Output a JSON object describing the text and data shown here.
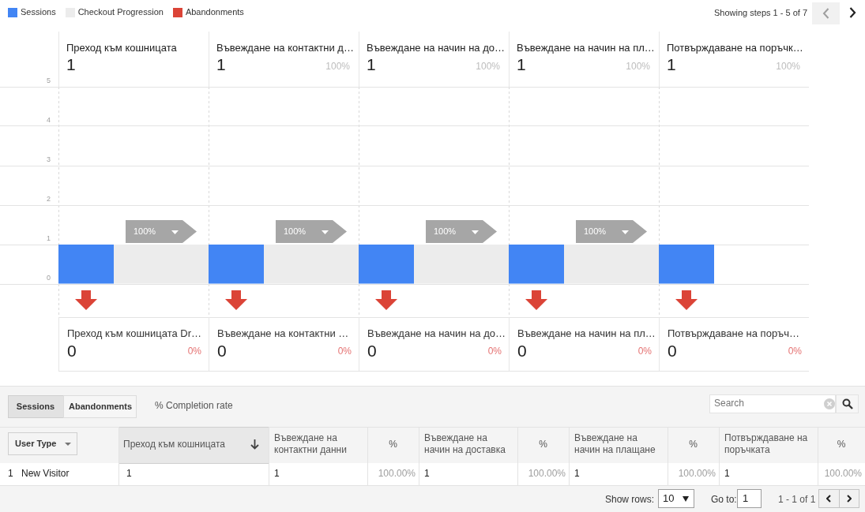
{
  "chart_data": {
    "type": "bar",
    "categories": [
      "Преход към кошницата",
      "Въвеждане на контактни д…",
      "Въвеждане на начин на до…",
      "Въвеждане на начин на пл…",
      "Потвърждаване на поръчк…"
    ],
    "series": [
      {
        "name": "Sessions",
        "color": "#4285f4",
        "values": [
          1,
          1,
          1,
          1,
          1
        ]
      },
      {
        "name": "Checkout Progression",
        "color": "#ececec",
        "values": [
          1,
          1,
          1,
          1,
          null
        ],
        "value_labels": [
          "100%",
          "100%",
          "100%",
          "100%",
          null
        ]
      },
      {
        "name": "Abandonments",
        "color": "#db4437",
        "values": [
          0,
          0,
          0,
          0,
          0
        ],
        "value_labels": [
          "0",
          "0",
          "0",
          "0",
          "0"
        ]
      }
    ],
    "ylim": [
      0,
      5
    ],
    "yticks": [
      0,
      1,
      2,
      3,
      4,
      5
    ],
    "grid": true,
    "legend": "top left",
    "annotations": [
      "Преход към кошницата Dr…",
      "Въвеждане на контактни …",
      "Въвеждане на начин на до…",
      "Въвеждане на начин на пл…",
      "Потвърждаване на поръч…",
      "0%",
      "0%",
      "0%",
      "0%",
      "0%",
      "100%",
      "100%",
      "100%",
      "100%",
      "1",
      "1",
      "1",
      "1",
      "1",
      "Showing steps 1 - 5 of 7",
      "Sessions",
      "Abandonments",
      "% Completion rate",
      "Search",
      "User Type",
      "Преход към кошницата",
      "Въвеждане на контактни данни",
      "%",
      "Въвеждане на начин на доставка",
      "%",
      "Въвеждане на начин на плащане",
      "%",
      "Потвърждаване на поръчката",
      "%",
      "1",
      "New Visitor",
      "1",
      "1",
      "100.00%",
      "1",
      "100.00%",
      "1",
      "100.00%",
      "1",
      "100.00%",
      "Show rows:",
      "10",
      "Go to:",
      "1",
      "1 - 1 of 1"
    ]
  }
}
